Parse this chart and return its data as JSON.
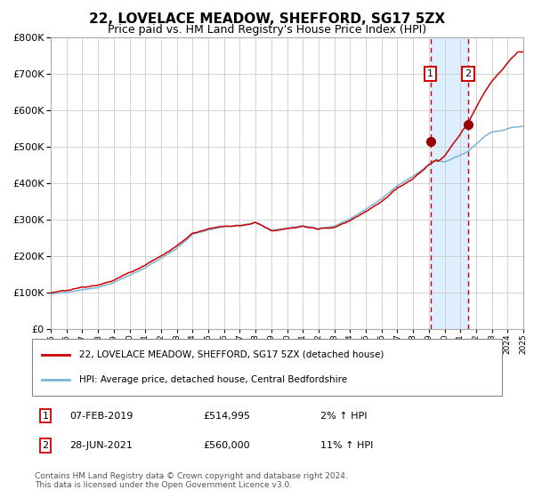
{
  "title": "22, LOVELACE MEADOW, SHEFFORD, SG17 5ZX",
  "subtitle": "Price paid vs. HM Land Registry's House Price Index (HPI)",
  "hpi_label": "HPI: Average price, detached house, Central Bedfordshire",
  "property_label": "22, LOVELACE MEADOW, SHEFFORD, SG17 5ZX (detached house)",
  "sale1_date": "07-FEB-2019",
  "sale1_price": 514995,
  "sale1_pct": "2%",
  "sale2_date": "28-JUN-2021",
  "sale2_price": 560000,
  "sale2_pct": "11%",
  "sale1_year": 2019.1,
  "sale2_year": 2021.5,
  "xmin": 1995,
  "xmax": 2025,
  "ymin": 0,
  "ymax": 800000,
  "footnote": "Contains HM Land Registry data © Crown copyright and database right 2024.\nThis data is licensed under the Open Government Licence v3.0.",
  "hpi_color": "#7ab4d8",
  "property_color": "#cc0000",
  "dot_color": "#990000",
  "dashed_color": "#cc0000",
  "shade_color": "#ddeeff",
  "background_color": "#ffffff",
  "grid_color": "#cccccc"
}
